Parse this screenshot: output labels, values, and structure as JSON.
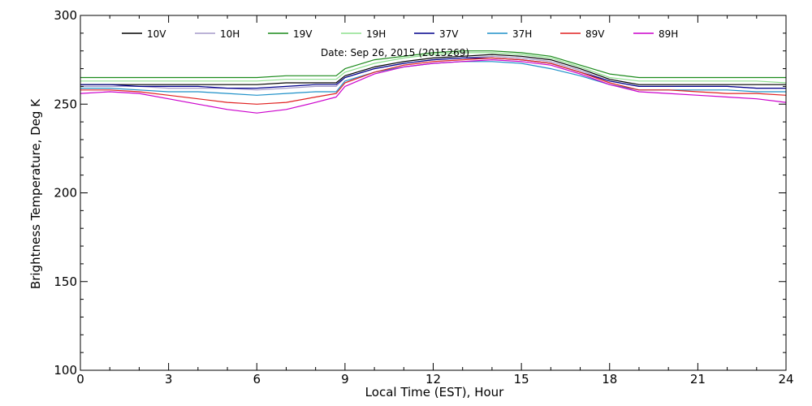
{
  "chart_data": {
    "type": "line",
    "xlabel": "Local Time (EST), Hour",
    "ylabel": "Brightness Temperature, Deg  K",
    "annotation": "Date: Sep 26, 2015 (2015269)",
    "xlim": [
      0,
      24
    ],
    "ylim": [
      100,
      300
    ],
    "xticks": [
      0,
      3,
      6,
      9,
      12,
      15,
      18,
      21,
      24
    ],
    "yticks": [
      100,
      150,
      200,
      250,
      300
    ],
    "grid": false,
    "legend_position": "top",
    "x": [
      0,
      1,
      2,
      3,
      4,
      5,
      6,
      7,
      8,
      8.7,
      9,
      10,
      11,
      12,
      13,
      14,
      15,
      16,
      17,
      18,
      19,
      20,
      21,
      22,
      23,
      24
    ],
    "series": [
      {
        "name": "10V",
        "color": "#000000",
        "values": [
          261,
          261,
          261,
          261,
          261,
          261,
          261,
          262,
          262,
          262,
          266,
          271,
          274,
          276,
          277,
          278,
          277,
          275,
          270,
          264,
          261,
          261,
          261,
          261,
          261,
          261
        ]
      },
      {
        "name": "10H",
        "color": "#a59aca",
        "values": [
          260,
          260,
          260,
          259,
          259,
          259,
          258,
          259,
          260,
          260,
          265,
          270,
          273,
          275,
          276,
          277,
          276,
          274,
          269,
          263,
          260,
          260,
          260,
          260,
          259,
          259
        ]
      },
      {
        "name": "19V",
        "color": "#1a8a1a",
        "values": [
          265,
          265,
          265,
          265,
          265,
          265,
          265,
          266,
          266,
          266,
          270,
          275,
          277,
          279,
          280,
          280,
          279,
          277,
          272,
          267,
          265,
          265,
          265,
          265,
          265,
          265
        ]
      },
      {
        "name": "19H",
        "color": "#8ee08e",
        "values": [
          263,
          263,
          263,
          263,
          263,
          263,
          263,
          264,
          264,
          264,
          268,
          273,
          276,
          278,
          279,
          279,
          278,
          276,
          271,
          265,
          263,
          263,
          263,
          263,
          263,
          262
        ]
      },
      {
        "name": "37V",
        "color": "#00008b",
        "values": [
          261,
          261,
          260,
          260,
          260,
          259,
          259,
          260,
          261,
          261,
          265,
          270,
          273,
          275,
          276,
          276,
          275,
          273,
          268,
          263,
          260,
          260,
          260,
          260,
          259,
          259
        ]
      },
      {
        "name": "37H",
        "color": "#1e90c8",
        "values": [
          259,
          259,
          258,
          257,
          257,
          256,
          255,
          256,
          257,
          257,
          263,
          268,
          271,
          273,
          274,
          274,
          273,
          270,
          266,
          261,
          258,
          258,
          258,
          258,
          257,
          257
        ]
      },
      {
        "name": "89V",
        "color": "#e02020",
        "values": [
          258,
          258,
          257,
          255,
          253,
          251,
          250,
          251,
          254,
          256,
          262,
          268,
          272,
          274,
          275,
          276,
          275,
          273,
          268,
          262,
          258,
          258,
          257,
          256,
          256,
          255
        ]
      },
      {
        "name": "89H",
        "color": "#cc00cc",
        "values": [
          256,
          257,
          256,
          253,
          250,
          247,
          245,
          247,
          251,
          254,
          260,
          267,
          271,
          273,
          274,
          275,
          274,
          272,
          267,
          261,
          257,
          256,
          255,
          254,
          253,
          251
        ]
      }
    ]
  }
}
